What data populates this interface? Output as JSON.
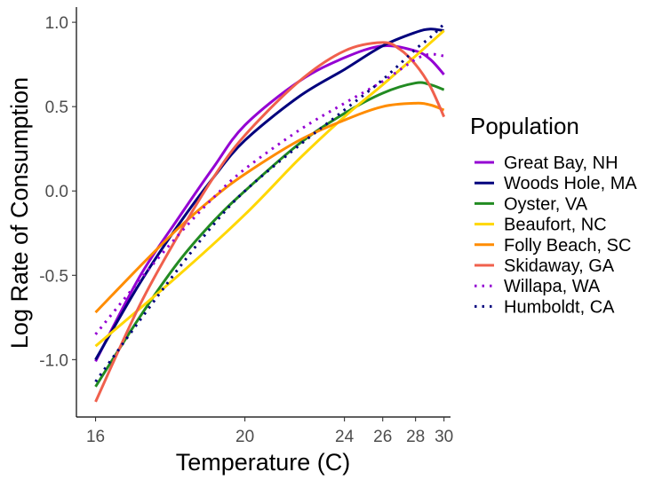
{
  "chart_data": {
    "type": "line",
    "xlabel": "Temperature (C)",
    "ylabel": "Log Rate of Consumption",
    "xlim": [
      15.6,
      30.5
    ],
    "ylim": [
      -1.34,
      1.09
    ],
    "x_ticks": [
      16,
      20,
      24,
      26,
      28,
      30
    ],
    "x_tick_labels": [
      "16",
      "20",
      "24",
      "26",
      "28",
      "30"
    ],
    "y_ticks": [
      -1.0,
      -0.5,
      0.0,
      0.5,
      1.0
    ],
    "y_tick_labels": [
      "-1.0",
      "-0.5",
      "0.0",
      "0.5",
      "1.0"
    ],
    "x_scale": "reciprocal",
    "grid": false,
    "legend": {
      "title": "Population",
      "position": "right"
    },
    "series": [
      {
        "name": "Great Bay, NH",
        "color": "#9400D3",
        "linestyle": "solid",
        "points": [
          [
            16,
            -1.01
          ],
          [
            17,
            -0.51
          ],
          [
            18,
            -0.16
          ],
          [
            19,
            0.14
          ],
          [
            20,
            0.39
          ],
          [
            22,
            0.65
          ],
          [
            24,
            0.79
          ],
          [
            26,
            0.86
          ],
          [
            28,
            0.83
          ],
          [
            29,
            0.78
          ],
          [
            30,
            0.69
          ]
        ]
      },
      {
        "name": "Woods Hole, MA",
        "color": "#00007D",
        "linestyle": "solid",
        "points": [
          [
            16,
            -1.0
          ],
          [
            17,
            -0.55
          ],
          [
            18,
            -0.2
          ],
          [
            19,
            0.08
          ],
          [
            20,
            0.3
          ],
          [
            22,
            0.56
          ],
          [
            24,
            0.72
          ],
          [
            26,
            0.86
          ],
          [
            28,
            0.94
          ],
          [
            29,
            0.96
          ],
          [
            30,
            0.95
          ]
        ]
      },
      {
        "name": "Oyster, VA",
        "color": "#228B22",
        "linestyle": "solid",
        "points": [
          [
            16,
            -1.16
          ],
          [
            17,
            -0.75
          ],
          [
            18,
            -0.42
          ],
          [
            19,
            -0.18
          ],
          [
            20,
            0.0
          ],
          [
            22,
            0.28
          ],
          [
            24,
            0.46
          ],
          [
            26,
            0.58
          ],
          [
            28,
            0.64
          ],
          [
            29,
            0.63
          ],
          [
            30,
            0.6
          ]
        ]
      },
      {
        "name": "Beaufort, NC",
        "color": "#FFD700",
        "linestyle": "solid",
        "points": [
          [
            16,
            -0.92
          ],
          [
            18,
            -0.5
          ],
          [
            20,
            -0.14
          ],
          [
            22,
            0.19
          ],
          [
            24,
            0.44
          ],
          [
            26,
            0.63
          ],
          [
            28,
            0.8
          ],
          [
            30,
            0.95
          ]
        ]
      },
      {
        "name": "Folly Beach, SC",
        "color": "#FF8C00",
        "linestyle": "solid",
        "points": [
          [
            16,
            -0.72
          ],
          [
            17,
            -0.45
          ],
          [
            18,
            -0.22
          ],
          [
            19,
            -0.04
          ],
          [
            20,
            0.1
          ],
          [
            22,
            0.3
          ],
          [
            24,
            0.42
          ],
          [
            26,
            0.5
          ],
          [
            28,
            0.52
          ],
          [
            29,
            0.51
          ],
          [
            30,
            0.48
          ]
        ]
      },
      {
        "name": "Skidaway, GA",
        "color": "#F0604D",
        "linestyle": "solid",
        "points": [
          [
            16,
            -1.25
          ],
          [
            17,
            -0.68
          ],
          [
            18,
            -0.26
          ],
          [
            19,
            0.08
          ],
          [
            20,
            0.33
          ],
          [
            22,
            0.65
          ],
          [
            24,
            0.83
          ],
          [
            26,
            0.88
          ],
          [
            27,
            0.84
          ],
          [
            28,
            0.75
          ],
          [
            29,
            0.62
          ],
          [
            30,
            0.44
          ]
        ]
      },
      {
        "name": "Willapa, WA",
        "color": "#9400D3",
        "linestyle": "dotted",
        "points": [
          [
            16,
            -0.85
          ],
          [
            17,
            -0.53
          ],
          [
            18,
            -0.26
          ],
          [
            19,
            -0.04
          ],
          [
            20,
            0.13
          ],
          [
            22,
            0.36
          ],
          [
            24,
            0.52
          ],
          [
            26,
            0.65
          ],
          [
            28,
            0.78
          ],
          [
            29,
            0.81
          ],
          [
            30,
            0.8
          ]
        ]
      },
      {
        "name": "Humboldt, CA",
        "color": "#00007D",
        "linestyle": "dotted",
        "points": [
          [
            16,
            -1.13
          ],
          [
            17,
            -0.77
          ],
          [
            18,
            -0.46
          ],
          [
            19,
            -0.2
          ],
          [
            20,
            0.0
          ],
          [
            22,
            0.27
          ],
          [
            24,
            0.48
          ],
          [
            26,
            0.66
          ],
          [
            28,
            0.84
          ],
          [
            29,
            0.91
          ],
          [
            30,
            0.99
          ]
        ]
      }
    ]
  }
}
